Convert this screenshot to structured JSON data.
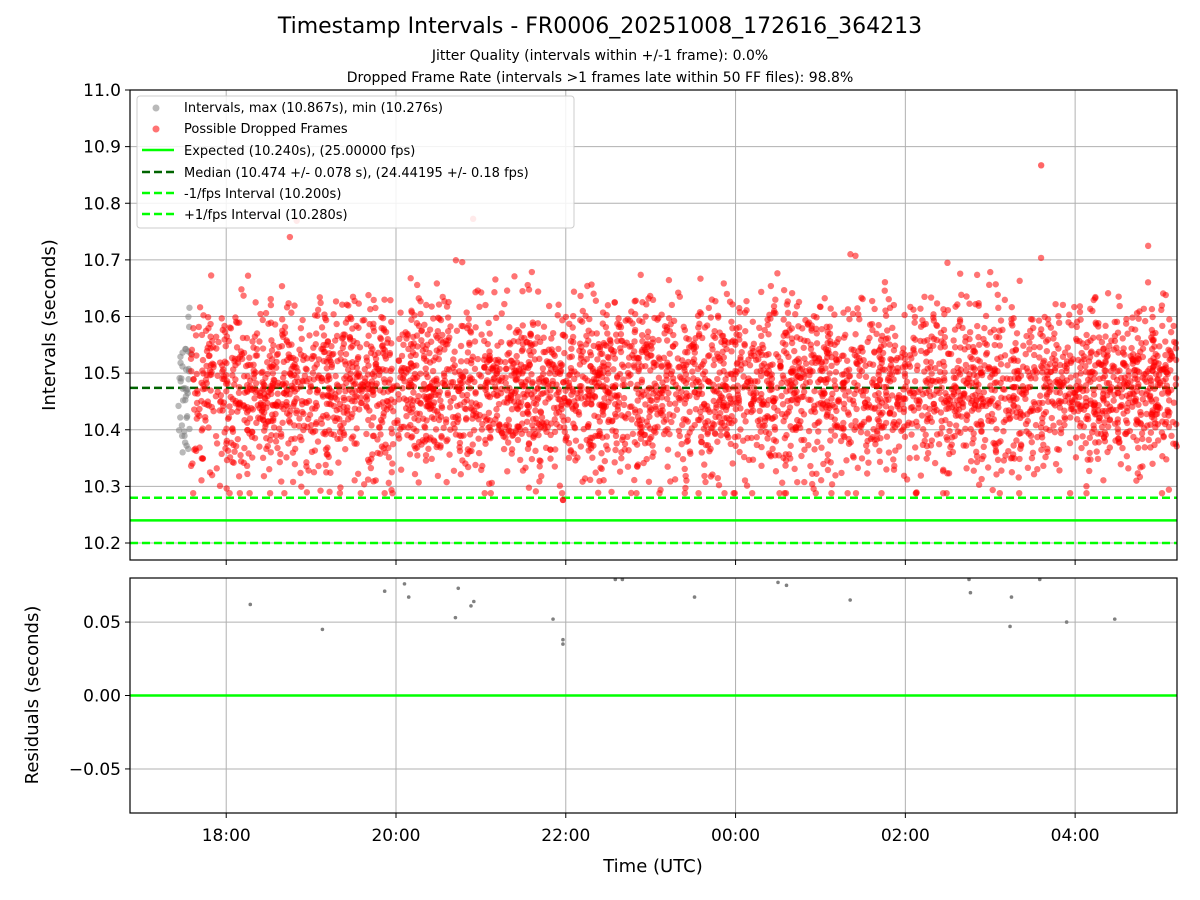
{
  "title": "Timestamp Intervals - FR0006_20251008_172616_364213",
  "subtitle_1": "Jitter Quality (intervals within +/-1 frame): 0.0%",
  "subtitle_2": "Dropped Frame Rate (intervals >1 frames late within 50 FF files): 98.8%",
  "colors": {
    "interval_points": "#808080",
    "dropped_points": "#ff0000",
    "expected_line": "#00ff00",
    "median_line": "#006400",
    "grid": "#b0b0b0"
  },
  "chart_data": [
    {
      "type": "scatter",
      "ylabel": "Intervals (seconds)",
      "xlim": [
        "2025-10-08 16:52",
        "2025-10-09 05:12"
      ],
      "ylim": [
        10.17,
        11.0
      ],
      "yticks": [
        "10.2",
        "10.3",
        "10.4",
        "10.5",
        "10.6",
        "10.7",
        "10.8",
        "10.9",
        "11.0"
      ],
      "grid": true,
      "legend_position": "top-left",
      "legend": [
        "Intervals, max (10.867s), min (10.276s)",
        "Possible Dropped Frames",
        "Expected (10.240s), (25.00000 fps)",
        "Median (10.474 +/- 0.078 s), (24.44195 +/- 0.18 fps)",
        "-1/fps Interval (10.200s)",
        "+1/fps Interval (10.280s)"
      ],
      "lines": {
        "expected": 10.24,
        "median": 10.474,
        "minus_1fps": 10.2,
        "plus_1fps": 10.28
      },
      "stats": {
        "max": 10.867,
        "min": 10.276,
        "median": 10.474,
        "median_std": 0.078
      },
      "series": [
        {
          "name": "Intervals, max (10.867s), min (10.276s)",
          "x_range": [
            "2025-10-08 17:26",
            "2025-10-08 17:35"
          ],
          "y_range": [
            10.32,
            10.7
          ],
          "approx_count": 40
        },
        {
          "name": "Possible Dropped Frames",
          "x_range": [
            "2025-10-08 17:35",
            "2025-10-09 05:12"
          ],
          "y_range": [
            10.276,
            10.867
          ],
          "approx_count": 4200
        }
      ]
    },
    {
      "type": "scatter",
      "xlabel": "Time (UTC)",
      "ylabel": "Residuals (seconds)",
      "xlim": [
        "2025-10-08 16:52",
        "2025-10-09 05:12"
      ],
      "ylim": [
        -0.08,
        0.08
      ],
      "yticks": [
        "−0.05",
        "0.00",
        "0.05"
      ],
      "xticks": [
        "18:00",
        "20:00",
        "22:00",
        "00:00",
        "02:00",
        "04:00"
      ],
      "grid": true,
      "zero_line": 0.0,
      "series": [
        {
          "x": [
            "18:17",
            "19:08",
            "19:52",
            "20:06",
            "20:09",
            "20:42",
            "20:44",
            "20:53",
            "20:55",
            "21:51",
            "21:58",
            "21:58",
            "22:35",
            "22:40",
            "23:31",
            "00:30",
            "00:36",
            "01:21",
            "02:45",
            "02:46",
            "03:14",
            "03:15",
            "03:35",
            "03:54",
            "04:28"
          ],
          "y": [
            0.062,
            0.045,
            0.071,
            0.076,
            0.067,
            0.053,
            0.073,
            0.061,
            0.064,
            0.052,
            0.035,
            0.038,
            0.079,
            0.079,
            0.067,
            0.077,
            0.075,
            0.065,
            0.079,
            0.07,
            0.047,
            0.067,
            0.079,
            0.05,
            0.052
          ]
        }
      ]
    }
  ]
}
